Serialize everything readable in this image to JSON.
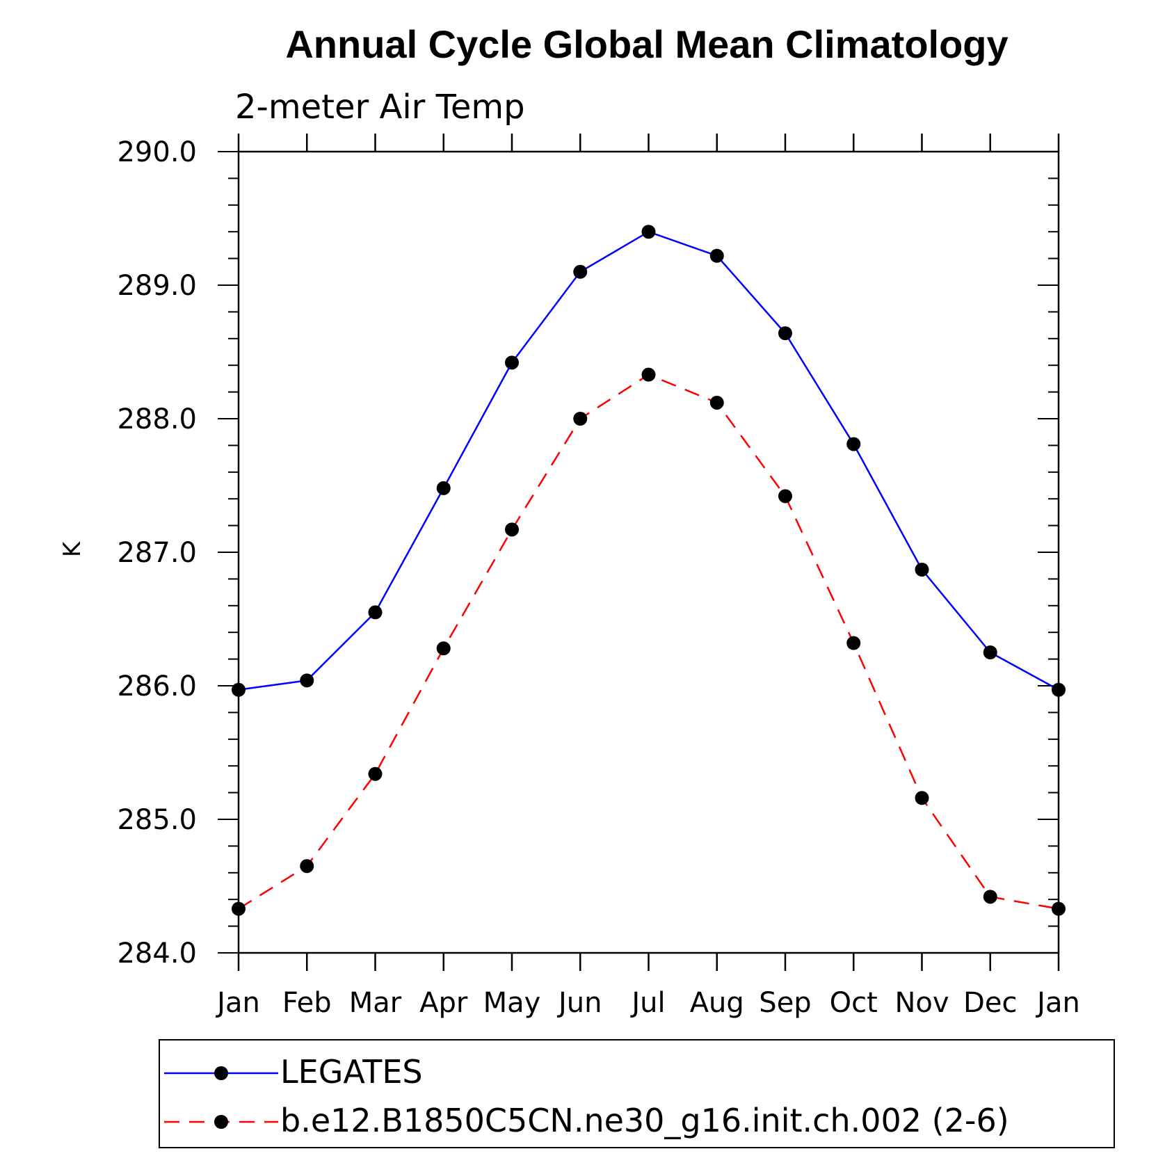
{
  "chart_data": {
    "type": "line",
    "title": "Annual Cycle Global Mean Climatology",
    "subtitle": "2-meter Air Temp",
    "xlabel": "",
    "ylabel": "K",
    "categories": [
      "Jan",
      "Feb",
      "Mar",
      "Apr",
      "May",
      "Jun",
      "Jul",
      "Aug",
      "Sep",
      "Oct",
      "Nov",
      "Dec",
      "Jan"
    ],
    "ylim": [
      284.0,
      290.0
    ],
    "yticks": [
      284.0,
      285.0,
      286.0,
      287.0,
      288.0,
      289.0,
      290.0
    ],
    "ytick_labels": [
      "284.0",
      "285.0",
      "286.0",
      "287.0",
      "288.0",
      "289.0",
      "290.0"
    ],
    "grid": false,
    "legend_position": "bottom",
    "series": [
      {
        "name": "LEGATES",
        "color": "#0000ff",
        "line_style": "solid",
        "marker": "filled-circle",
        "values": [
          285.97,
          286.04,
          286.55,
          287.48,
          288.42,
          289.1,
          289.4,
          289.22,
          288.64,
          287.81,
          286.87,
          286.25,
          285.97
        ]
      },
      {
        "name": "b.e12.B1850C5CN.ne30_g16.init.ch.002 (2-6)",
        "color": "#ff0000",
        "line_style": "dashed",
        "marker": "filled-circle",
        "values": [
          284.33,
          284.65,
          285.34,
          286.28,
          287.17,
          288.0,
          288.33,
          288.12,
          287.42,
          286.32,
          285.16,
          284.42,
          284.33
        ]
      }
    ]
  }
}
